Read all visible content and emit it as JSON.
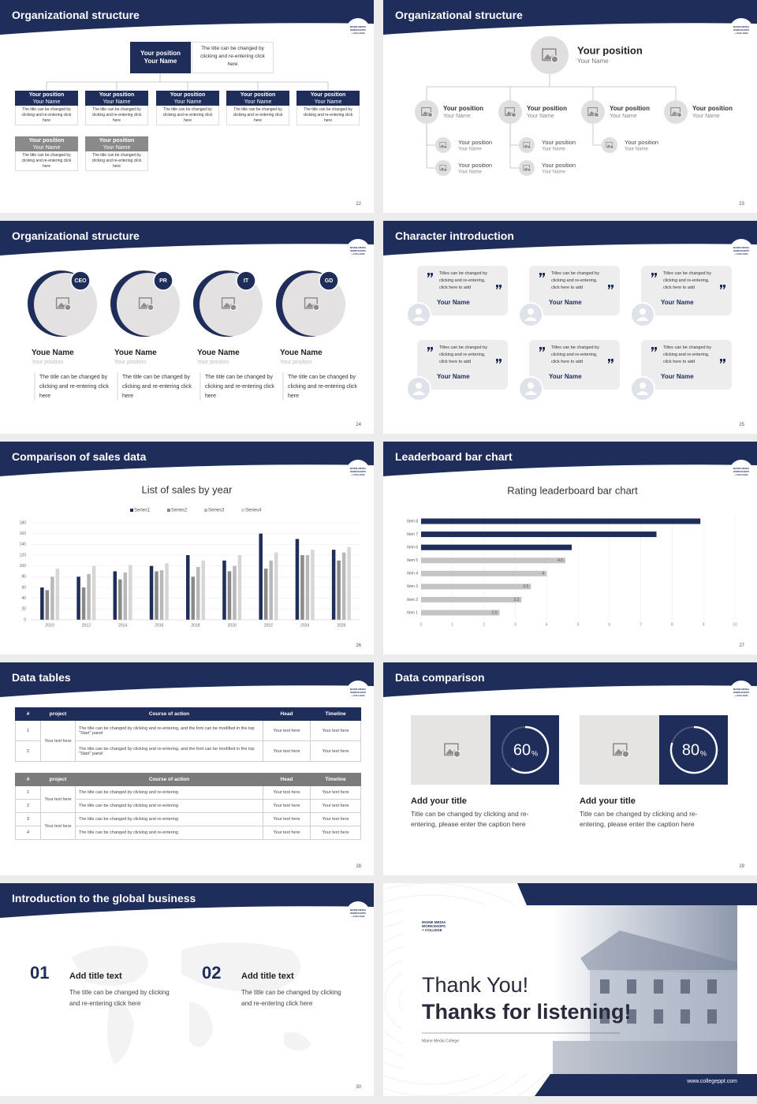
{
  "logo": [
    "MAINE MEDIA",
    "WORKSHOPS",
    "+ COLLEGE"
  ],
  "slides": [
    {
      "title": "Organizational structure",
      "page": "22",
      "top": {
        "position": "Your position",
        "name": "Your Name",
        "note": "The title can be changed by clicking and re-entering click here"
      },
      "cards": [
        {
          "position": "Your position",
          "name": "Your Name",
          "text": "The title can be changed by clicking and re-entering click here"
        },
        {
          "position": "Your position",
          "name": "Your Name",
          "text": "The title can be changed by clicking and re-entering click here"
        },
        {
          "position": "Your position",
          "name": "Your Name",
          "text": "The title can be changed by clicking and re-entering click here"
        },
        {
          "position": "Your position",
          "name": "Your Name",
          "text": "The title can be changed by clicking and re-entering click here"
        },
        {
          "position": "Your position",
          "name": "Your Name",
          "text": "The title can be changed by clicking and re-entering click here"
        },
        {
          "position": "Your position",
          "name": "Your Name",
          "text": "The title can be changed by clicking and re-entering click here"
        },
        {
          "position": "Your position",
          "name": "Your Name",
          "text": "The title can be changed by clicking and re-entering click here"
        }
      ]
    },
    {
      "title": "Organizational structure",
      "page": "23",
      "top": {
        "position": "Your position",
        "name": "Your Name"
      },
      "level1": [
        {
          "position": "Your position",
          "name": "Your Name"
        },
        {
          "position": "Your position",
          "name": "Your Name"
        },
        {
          "position": "Your position",
          "name": "Your Name"
        },
        {
          "position": "Your position",
          "name": "Your Name"
        }
      ],
      "level2": [
        {
          "position": "Your position",
          "name": "Your Name"
        },
        {
          "position": "Your position",
          "name": "Your Name"
        },
        {
          "position": "Your position",
          "name": "Your Name"
        },
        {
          "position": "Your position",
          "name": "Your Name"
        },
        {
          "position": "Your position",
          "name": "Your Name"
        }
      ]
    },
    {
      "title": "Organizational structure",
      "page": "24",
      "people": [
        {
          "badge": "CEO",
          "name": "Youe Name",
          "position": "Your position",
          "text": "The title can be changed by clicking and re-entering click here"
        },
        {
          "badge": "PR",
          "name": "Youe Name",
          "position": "Your position",
          "text": "The title can be changed by clicking and re-entering click here"
        },
        {
          "badge": "IT",
          "name": "Youe Name",
          "position": "Your position",
          "text": "The title can be changed by clicking and re-entering click here"
        },
        {
          "badge": "GD",
          "name": "Youe Name",
          "position": "Your position",
          "text": "The title can be changed by clicking and re-entering click here"
        }
      ]
    },
    {
      "title": "Character introduction",
      "page": "25",
      "quotes": [
        {
          "text": "Titles can be changed by clicking and re-entering, click here to add",
          "name": "Your Name"
        },
        {
          "text": "Titles can be changed by clicking and re-entering, click here to add",
          "name": "Your Name"
        },
        {
          "text": "Titles can be changed by clicking and re-entering, click here to add",
          "name": "Your Name"
        },
        {
          "text": "Titles can be changed by clicking and re-entering, click here to add",
          "name": "Your Name"
        },
        {
          "text": "Titles can be changed by clicking and re-entering, click here to add",
          "name": "Your Name"
        },
        {
          "text": "Titles can be changed by clicking and re-entering, click here to add",
          "name": "Your Name"
        }
      ]
    },
    {
      "title": "Comparison of sales data",
      "page": "26"
    },
    {
      "title": "Leaderboard bar chart",
      "page": "27"
    },
    {
      "title": "Data tables",
      "page": "28",
      "tables": [
        {
          "header": [
            "#",
            "project",
            "Course of action",
            "Head",
            "Timeline"
          ],
          "projects": [
            "Your text here"
          ],
          "rows": [
            [
              "1",
              "The title can be changed by clicking and re-entering, and the font can be modified in the top \"Start\" panel",
              "Your text here",
              "Your text here"
            ],
            [
              "2",
              "The title can be changed by clicking and re-entering, and the font can be modified in the top \"Start\" panel",
              "Your text here",
              "Your text here"
            ]
          ]
        },
        {
          "header": [
            "#",
            "project",
            "Course of action",
            "Head",
            "Timeline"
          ],
          "projects": [
            "Your text here",
            "Your text here"
          ],
          "rows": [
            [
              "1",
              "The title can be changed by clicking and re-entering",
              "Your text here",
              "Your text here"
            ],
            [
              "2",
              "The title can be changed by clicking and re-entering",
              "Your text here",
              "Your text here"
            ],
            [
              "3",
              "The title can be changed by clicking and re-entering",
              "Your text here",
              "Your text here"
            ],
            [
              "4",
              "The title can be changed by clicking and re-entering",
              "Your text here",
              "Your text here"
            ]
          ]
        }
      ]
    },
    {
      "title": "Data comparison",
      "page": "29",
      "items": [
        {
          "value": 60,
          "unit": "%",
          "title": "Add your title",
          "text": "Title can be changed by clicking and re-entering, please enter the caption here"
        },
        {
          "value": 80,
          "unit": "%",
          "title": "Add your title",
          "text": "Title can be changed by clicking and re-entering, please enter the caption here"
        }
      ]
    },
    {
      "title": "Introduction to the global business",
      "page": "30",
      "items": [
        {
          "number": "01",
          "title": "Add title text",
          "text": "The title can be changed by clicking and re-entering click here"
        },
        {
          "number": "02",
          "title": "Add title text",
          "text": "The title can be changed by clicking and re-entering click here"
        }
      ]
    },
    {
      "thanks": "Thank You!",
      "subtitle": "Thanks for listening!",
      "org": "Maine Media College",
      "url": "www.collegeppt.com"
    }
  ],
  "chart_data": [
    {
      "type": "bar",
      "title": "List of sales by year",
      "categories": [
        "2010",
        "2012",
        "2014",
        "2016",
        "2018",
        "2020",
        "2022",
        "2024",
        "2026"
      ],
      "series": [
        {
          "name": "Series1",
          "color": "#1f2d5a",
          "values": [
            60,
            80,
            90,
            100,
            120,
            110,
            160,
            150,
            130
          ]
        },
        {
          "name": "Series2",
          "color": "#8a8a8a",
          "values": [
            55,
            60,
            75,
            90,
            80,
            90,
            95,
            120,
            110
          ]
        },
        {
          "name": "Series3",
          "color": "#b8b8b8",
          "values": [
            80,
            85,
            88,
            92,
            98,
            100,
            110,
            120,
            125
          ]
        },
        {
          "name": "Series4",
          "color": "#d6d6d6",
          "values": [
            95,
            100,
            102,
            105,
            110,
            120,
            125,
            130,
            135
          ]
        }
      ],
      "ylim": [
        0,
        180
      ],
      "yticks": [
        0,
        20,
        40,
        60,
        80,
        100,
        120,
        140,
        160,
        180
      ],
      "grid": true,
      "legend": "top"
    },
    {
      "type": "barh",
      "title": "Rating leaderboard bar chart",
      "categories": [
        "Item 1",
        "Item 2",
        "Item 3",
        "Item 4",
        "Item 5",
        "Item 6",
        "Item 7",
        "Item 8"
      ],
      "values": [
        2.5,
        3.2,
        3.5,
        4,
        4.6,
        4.8,
        7.5,
        8.9
      ],
      "value_labels": [
        "2.5",
        "3.2",
        "3.5",
        "4",
        "4.6",
        null,
        null,
        null
      ],
      "colors": [
        "#c4c4c4",
        "#c4c4c4",
        "#c4c4c4",
        "#c4c4c4",
        "#c4c4c4",
        "#1f2d5a",
        "#1f2d5a",
        "#1f2d5a"
      ],
      "xlim": [
        0,
        10
      ],
      "xticks": [
        0,
        1,
        2,
        3,
        4,
        5,
        6,
        7,
        8,
        9,
        10
      ],
      "grid": true
    }
  ]
}
